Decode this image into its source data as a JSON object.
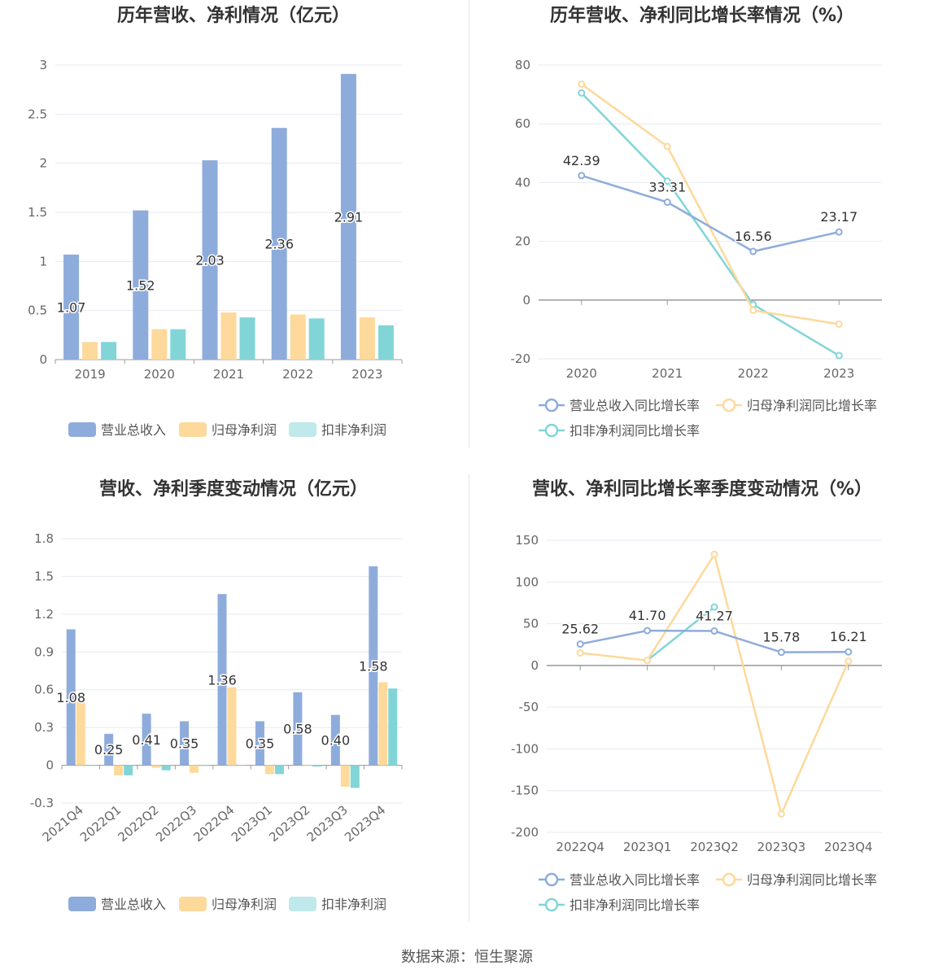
{
  "colors": {
    "revenue": "#8eacdb",
    "net_profit": "#fdd99b",
    "deducted_profit": "#82d5d7",
    "grid": "#e6e9f0",
    "axis_text": "#666666",
    "title": "#333333"
  },
  "footer": {
    "source": "数据来源：恒生聚源"
  },
  "chart_data": [
    {
      "id": "annual_bar",
      "type": "bar",
      "title": "历年营收、净利情况（亿元）",
      "categories": [
        "2019",
        "2020",
        "2021",
        "2022",
        "2023"
      ],
      "ylim": [
        0,
        3
      ],
      "yticks": [
        "0",
        "0.5",
        "1",
        "1.5",
        "2",
        "2.5",
        "3"
      ],
      "series": [
        {
          "name": "营业总收入",
          "values": [
            1.07,
            1.52,
            2.03,
            2.36,
            2.91
          ],
          "labels": [
            "1.07",
            "1.52",
            "2.03",
            "2.36",
            "2.91"
          ]
        },
        {
          "name": "归母净利润",
          "values": [
            0.18,
            0.31,
            0.48,
            0.46,
            0.43
          ]
        },
        {
          "name": "扣非净利润",
          "values": [
            0.18,
            0.31,
            0.43,
            0.42,
            0.35
          ]
        }
      ],
      "legend_placement": "bottom",
      "grid": true
    },
    {
      "id": "annual_growth",
      "type": "line",
      "title": "历年营收、净利同比增长率情况（%）",
      "categories": [
        "2020",
        "2021",
        "2022",
        "2023"
      ],
      "ylim": [
        -20,
        80
      ],
      "yticks": [
        "-20",
        "0",
        "20",
        "40",
        "60",
        "80"
      ],
      "series": [
        {
          "name": "营业总收入同比增长率",
          "values": [
            42.39,
            33.31,
            16.56,
            23.17
          ],
          "labels": [
            "42.39",
            "33.31",
            "16.56",
            "23.17"
          ]
        },
        {
          "name": "归母净利润同比增长率",
          "values": [
            73.5,
            52.3,
            -3.5,
            -8.2
          ]
        },
        {
          "name": "扣非净利润同比增长率",
          "values": [
            70.5,
            40.5,
            -1.5,
            -18.9
          ]
        }
      ],
      "legend_placement": "bottom",
      "grid": true
    },
    {
      "id": "quarterly_bar",
      "type": "bar",
      "title": "营收、净利季度变动情况（亿元）",
      "categories": [
        "2021Q4",
        "2022Q1",
        "2022Q2",
        "2022Q3",
        "2022Q4",
        "2023Q1",
        "2023Q2",
        "2023Q3",
        "2023Q4"
      ],
      "ylim": [
        -0.3,
        1.8
      ],
      "yticks": [
        "-0.3",
        "0",
        "0.3",
        "0.6",
        "0.9",
        "1.2",
        "1.5",
        "1.8"
      ],
      "series": [
        {
          "name": "营业总收入",
          "values": [
            1.08,
            0.25,
            0.41,
            0.35,
            1.36,
            0.35,
            0.58,
            0.4,
            1.58
          ],
          "labels": [
            "1.08",
            "0.25",
            "0.41",
            "0.35",
            "1.36",
            "0.35",
            "0.58",
            "0.40",
            "1.58"
          ]
        },
        {
          "name": "归母净利润",
          "values": [
            0.51,
            -0.08,
            -0.02,
            -0.06,
            0.62,
            -0.07,
            0.0,
            -0.17,
            0.66
          ]
        },
        {
          "name": "扣非净利润",
          "values": [
            0.0,
            -0.08,
            -0.04,
            0.0,
            0.0,
            -0.07,
            -0.01,
            -0.18,
            0.61
          ]
        }
      ],
      "legend_placement": "bottom",
      "grid": true
    },
    {
      "id": "quarterly_growth",
      "type": "line",
      "title": "营收、净利同比增长率季度变动情况（%）",
      "categories": [
        "2022Q4",
        "2023Q1",
        "2023Q2",
        "2023Q3",
        "2023Q4"
      ],
      "ylim": [
        -200,
        150
      ],
      "yticks": [
        "-200",
        "-150",
        "-100",
        "-50",
        "0",
        "50",
        "100",
        "150"
      ],
      "series": [
        {
          "name": "营业总收入同比增长率",
          "values": [
            25.62,
            41.7,
            41.27,
            15.78,
            16.21
          ],
          "labels": [
            "25.62",
            "41.70",
            "41.27",
            "15.78",
            "16.21"
          ]
        },
        {
          "name": "归母净利润同比增长率",
          "values": [
            15,
            6,
            133,
            -178,
            5
          ]
        },
        {
          "name": "扣非净利润同比增长率",
          "values": [
            null,
            6,
            70,
            null,
            null
          ]
        }
      ],
      "legend_placement": "bottom",
      "grid": true
    }
  ]
}
